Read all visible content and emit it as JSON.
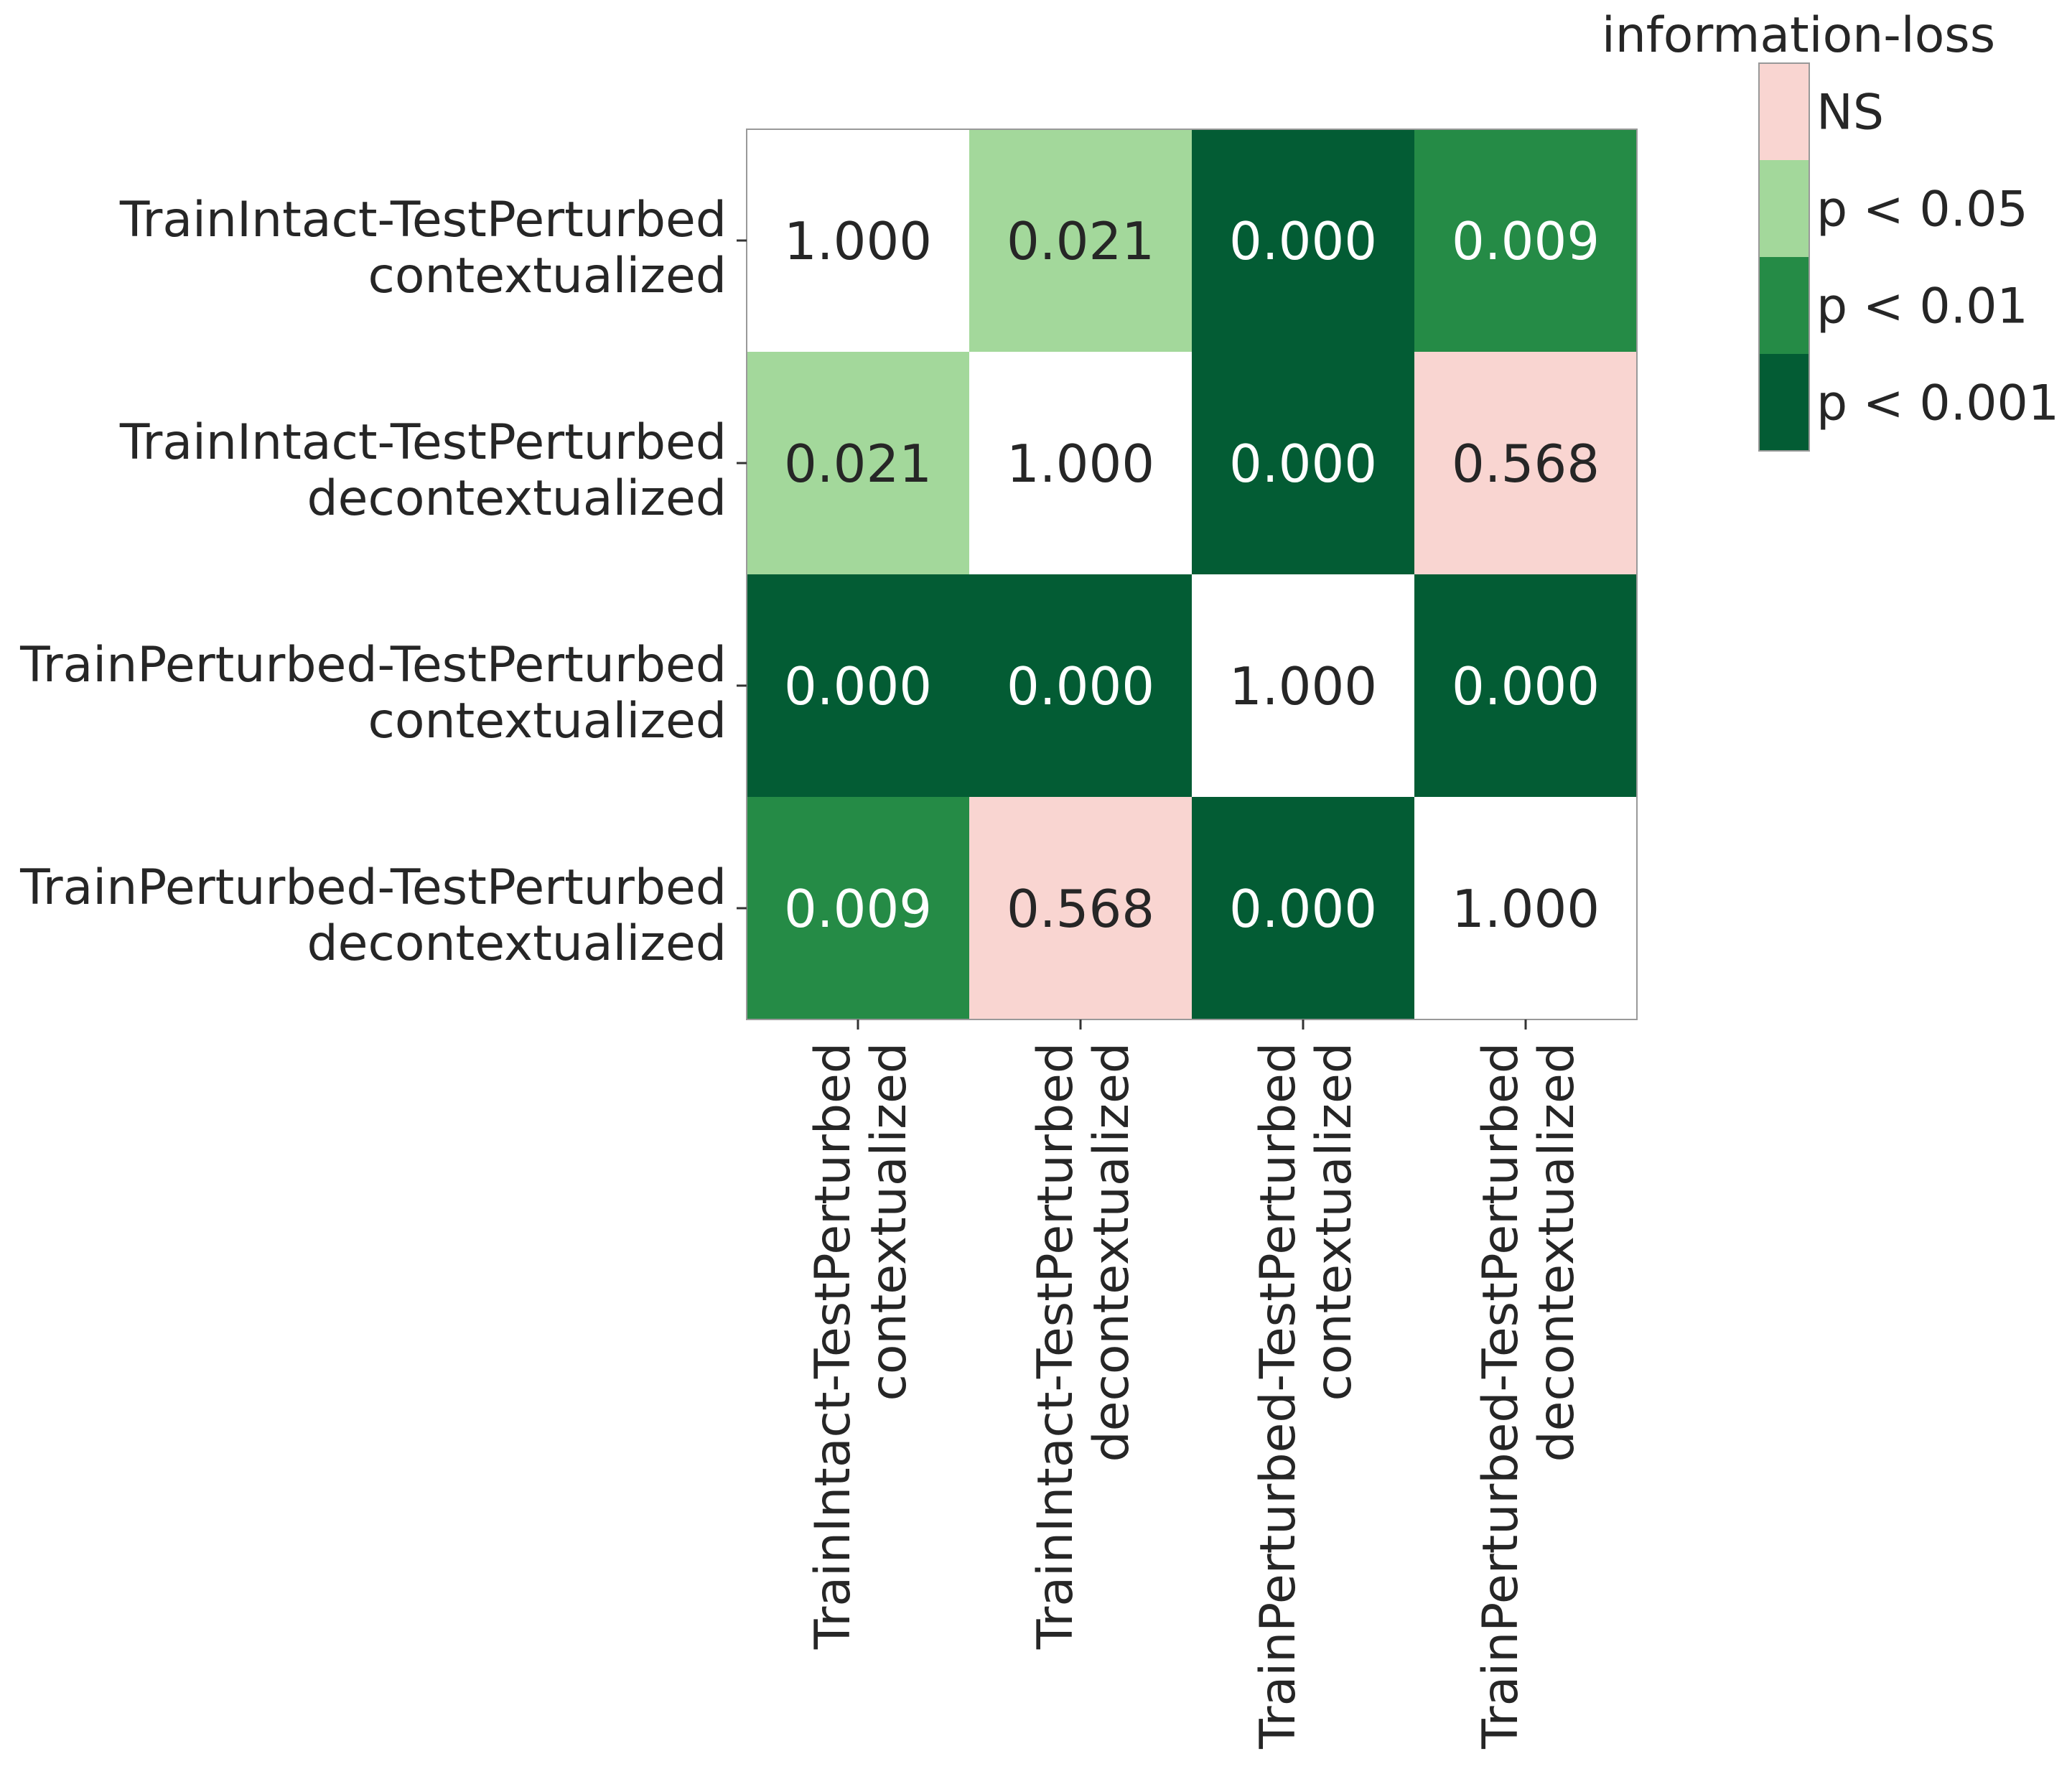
{
  "chart_data": {
    "type": "heatmap",
    "title": "",
    "xlabel": "",
    "ylabel": "",
    "categories": [
      [
        "TrainIntact-TestPerturbed",
        "contextualized"
      ],
      [
        "TrainIntact-TestPerturbed",
        "decontextualized"
      ],
      [
        "TrainPerturbed-TestPerturbed",
        "contextualized"
      ],
      [
        "TrainPerturbed-TestPerturbed",
        "decontextualized"
      ]
    ],
    "values": [
      [
        1.0,
        0.021,
        0.0,
        0.009
      ],
      [
        0.021,
        1.0,
        0.0,
        0.568
      ],
      [
        0.0,
        0.0,
        1.0,
        0.0
      ],
      [
        0.009,
        0.568,
        0.0,
        1.0
      ]
    ],
    "value_format_decimals": 3,
    "diagonal_color": "#ffffff",
    "legend": {
      "title": "information-loss",
      "placement": "top-right",
      "entries": [
        {
          "label": "NS",
          "color": "#f9d5d1",
          "max_p": null
        },
        {
          "label": "p < 0.05",
          "color": "#a3d89b",
          "max_p": 0.05
        },
        {
          "label": "p < 0.01",
          "color": "#258b46",
          "max_p": 0.01
        },
        {
          "label": "p < 0.001",
          "color": "#035c34",
          "max_p": 0.001
        }
      ]
    },
    "text_colors": {
      "dark": "#262626",
      "light": "#ffffff"
    },
    "grid": false
  }
}
